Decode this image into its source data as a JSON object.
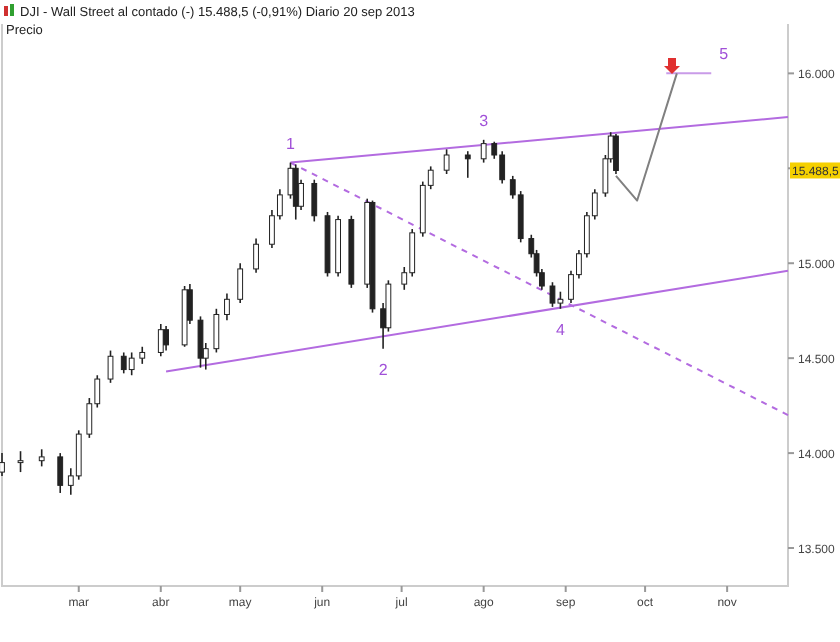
{
  "chart_data": {
    "type": "candlestick",
    "title": "DJI - Wall Street al contado (-)   15.488,5 (-0,91%)   Diario  20 sep 2013",
    "ylabel": "Precio",
    "color": "#222222",
    "x": [
      "2013-01-31",
      "2013-02-07",
      "2013-02-15",
      "2013-02-22",
      "2013-02-26",
      "2013-03-01",
      "2013-03-05",
      "2013-03-08",
      "2013-03-13",
      "2013-03-18",
      "2013-03-21",
      "2013-03-25",
      "2013-04-01",
      "2013-04-03",
      "2013-04-10",
      "2013-04-12",
      "2013-04-16",
      "2013-04-18",
      "2013-04-22",
      "2013-04-26",
      "2013-05-01",
      "2013-05-07",
      "2013-05-13",
      "2013-05-16",
      "2013-05-20",
      "2013-05-22",
      "2013-05-24",
      "2013-05-29",
      "2013-06-03",
      "2013-06-07",
      "2013-06-12",
      "2013-06-18",
      "2013-06-20",
      "2013-06-24",
      "2013-06-26",
      "2013-07-02",
      "2013-07-05",
      "2013-07-09",
      "2013-07-12",
      "2013-07-18",
      "2013-07-26",
      "2013-08-01",
      "2013-08-05",
      "2013-08-08",
      "2013-08-12",
      "2013-08-15",
      "2013-08-19",
      "2013-08-21",
      "2013-08-23",
      "2013-08-27",
      "2013-08-30",
      "2013-09-03",
      "2013-09-06",
      "2013-09-09",
      "2013-09-12",
      "2013-09-16",
      "2013-09-18",
      "2013-09-20"
    ],
    "ohlc": [
      [
        13900,
        14000,
        13880,
        13950
      ],
      [
        13950,
        14010,
        13900,
        13960
      ],
      [
        13960,
        14020,
        13930,
        13980
      ],
      [
        13980,
        14000,
        13790,
        13830
      ],
      [
        13830,
        13920,
        13780,
        13880
      ],
      [
        13880,
        14120,
        13860,
        14100
      ],
      [
        14100,
        14290,
        14080,
        14260
      ],
      [
        14260,
        14410,
        14240,
        14390
      ],
      [
        14390,
        14540,
        14370,
        14510
      ],
      [
        14510,
        14530,
        14420,
        14440
      ],
      [
        14440,
        14530,
        14410,
        14500
      ],
      [
        14500,
        14560,
        14470,
        14530
      ],
      [
        14530,
        14680,
        14510,
        14650
      ],
      [
        14650,
        14670,
        14540,
        14570
      ],
      [
        14570,
        14880,
        14560,
        14860
      ],
      [
        14860,
        14890,
        14680,
        14700
      ],
      [
        14700,
        14720,
        14450,
        14500
      ],
      [
        14500,
        14580,
        14440,
        14550
      ],
      [
        14550,
        14760,
        14530,
        14730
      ],
      [
        14730,
        14840,
        14700,
        14810
      ],
      [
        14810,
        15000,
        14790,
        14970
      ],
      [
        14970,
        15130,
        14950,
        15100
      ],
      [
        15100,
        15280,
        15080,
        15250
      ],
      [
        15250,
        15390,
        15230,
        15360
      ],
      [
        15360,
        15530,
        15340,
        15500
      ],
      [
        15500,
        15520,
        15230,
        15300
      ],
      [
        15300,
        15440,
        15280,
        15420
      ],
      [
        15420,
        15440,
        15220,
        15250
      ],
      [
        15250,
        15270,
        14930,
        14950
      ],
      [
        14950,
        15250,
        14930,
        15230
      ],
      [
        15230,
        15250,
        14870,
        14890
      ],
      [
        14890,
        15340,
        14870,
        15320
      ],
      [
        15320,
        15330,
        14740,
        14760
      ],
      [
        14760,
        14790,
        14550,
        14660
      ],
      [
        14660,
        14910,
        14640,
        14890
      ],
      [
        14890,
        14980,
        14860,
        14950
      ],
      [
        14950,
        15180,
        14930,
        15160
      ],
      [
        15160,
        15430,
        15140,
        15410
      ],
      [
        15410,
        15510,
        15390,
        15490
      ],
      [
        15490,
        15600,
        15470,
        15570
      ],
      [
        15570,
        15590,
        15450,
        15550
      ],
      [
        15550,
        15650,
        15530,
        15630
      ],
      [
        15630,
        15640,
        15550,
        15570
      ],
      [
        15570,
        15590,
        15420,
        15440
      ],
      [
        15440,
        15460,
        15340,
        15360
      ],
      [
        15360,
        15380,
        15110,
        15130
      ],
      [
        15130,
        15150,
        15030,
        15050
      ],
      [
        15050,
        15070,
        14930,
        14950
      ],
      [
        14950,
        14970,
        14860,
        14880
      ],
      [
        14880,
        14900,
        14770,
        14790
      ],
      [
        14790,
        14850,
        14760,
        14810
      ],
      [
        14810,
        14960,
        14790,
        14940
      ],
      [
        14940,
        15070,
        14920,
        15050
      ],
      [
        15050,
        15270,
        15030,
        15250
      ],
      [
        15250,
        15390,
        15230,
        15370
      ],
      [
        15370,
        15570,
        15350,
        15550
      ],
      [
        15550,
        15690,
        15530,
        15670
      ],
      [
        15670,
        15680,
        15470,
        15488.5
      ]
    ],
    "series": [
      {
        "type": "line",
        "color": "#b36be0",
        "x": [
          "2013-05-20",
          "2013-11-24"
        ],
        "values": [
          15530,
          15770
        ]
      },
      {
        "type": "line",
        "color": "#b36be0",
        "x": [
          "2013-04-03",
          "2013-11-24"
        ],
        "values": [
          14430,
          14960
        ]
      },
      {
        "type": "line",
        "color": "#b36be0",
        "line_style": "dashed",
        "x": [
          "2013-05-20",
          "2013-11-24"
        ],
        "values": [
          15530,
          14200
        ]
      },
      {
        "type": "line",
        "color": "#c99be8",
        "x": [
          "2013-10-09",
          "2013-10-26"
        ],
        "values": [
          16000,
          16000
        ]
      },
      {
        "type": "line",
        "color": "#808080",
        "x": [
          "2013-09-20",
          "2013-09-28",
          "2013-10-13"
        ],
        "values": [
          15460,
          15330,
          16000
        ]
      }
    ],
    "xlim": [
      "2013-01-31",
      "2013-11-24"
    ],
    "xticks": [
      {
        "value": "2013-03-01",
        "label": "mar"
      },
      {
        "value": "2013-04-01",
        "label": "abr"
      },
      {
        "value": "2013-05-01",
        "label": "may"
      },
      {
        "value": "2013-06-01",
        "label": "jun"
      },
      {
        "value": "2013-07-01",
        "label": "jul"
      },
      {
        "value": "2013-08-01",
        "label": "ago"
      },
      {
        "value": "2013-09-01",
        "label": "sep"
      },
      {
        "value": "2013-10-01",
        "label": "oct"
      },
      {
        "value": "2013-11-01",
        "label": "nov"
      }
    ],
    "ylim": [
      13300,
      16260
    ],
    "yticks": [
      {
        "value": 13500,
        "label": "13.500"
      },
      {
        "value": 14000,
        "label": "14.000"
      },
      {
        "value": 14500,
        "label": "14.500"
      },
      {
        "value": 15000,
        "label": "15.000"
      },
      {
        "value": 15500,
        "label": null
      },
      {
        "value": 16000,
        "label": "16.000"
      }
    ],
    "annotations": [
      {
        "text": "1",
        "x": "2013-05-20",
        "y": 15530
      },
      {
        "text": "2",
        "x": "2013-06-24",
        "y": 14550
      },
      {
        "text": "3",
        "x": "2013-08-01",
        "y": 15650
      },
      {
        "text": "4",
        "x": "2013-08-30",
        "y": 14760
      },
      {
        "text": "5",
        "x": "2013-10-26",
        "y": 16000
      },
      "15.488,5"
    ],
    "grid": false
  }
}
